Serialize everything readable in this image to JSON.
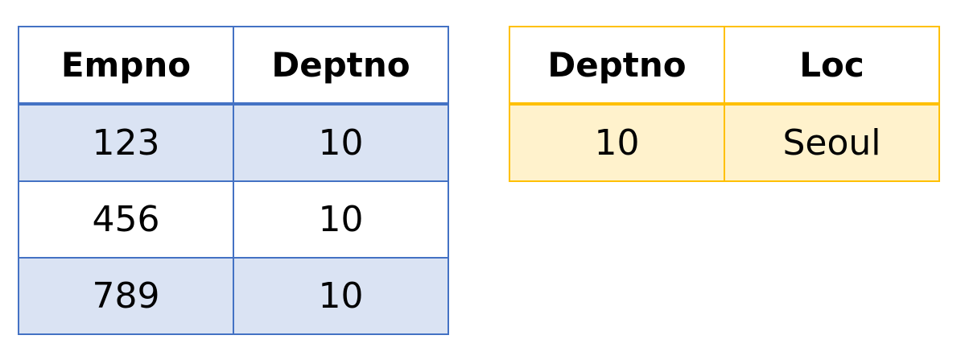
{
  "emp_table": {
    "headers": [
      "Empno",
      "Deptno"
    ],
    "rows": [
      [
        "123",
        "10"
      ],
      [
        "456",
        "10"
      ],
      [
        "789",
        "10"
      ]
    ],
    "border_color": "#4472c4",
    "shade_color": "#dae3f3"
  },
  "dept_table": {
    "headers": [
      "Deptno",
      "Loc"
    ],
    "rows": [
      [
        "10",
        "Seoul"
      ]
    ],
    "border_color": "#ffc000",
    "shade_color": "#fff2cc"
  }
}
